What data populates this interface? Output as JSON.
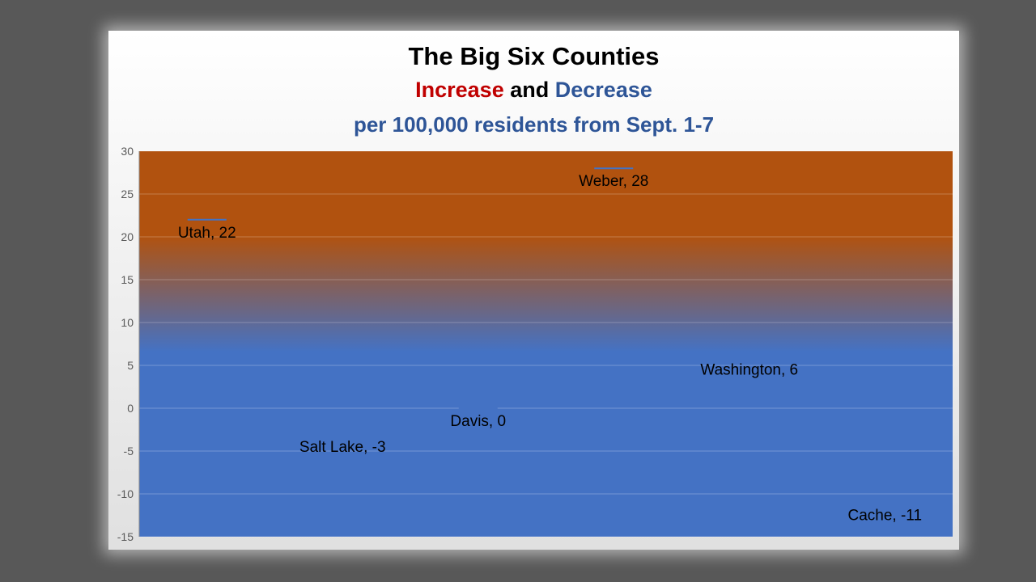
{
  "titles": {
    "line1": "The Big Six Counties",
    "line2_increase": "Increase",
    "line2_and": "and",
    "line2_decrease": "Decrease",
    "line3": "per 100,000 residents from Sept. 1-7"
  },
  "colors": {
    "increase": "#c00000",
    "decrease": "#2e5597",
    "dark": "#000000",
    "top_band": "#b1520f",
    "bottom_band": "#4472c4",
    "marker": "#4472c4"
  },
  "chart_data": {
    "type": "scatter",
    "title": "The Big Six Counties",
    "subtitle": "Increase and Decrease per 100,000 residents from Sept. 1-7",
    "xlabel": "",
    "ylabel": "",
    "ylim": [
      -15,
      30
    ],
    "yticks": [
      30,
      25,
      20,
      15,
      10,
      5,
      0,
      -5,
      -10,
      -15
    ],
    "grid": true,
    "legend": "none",
    "points": [
      {
        "label": "Utah, 22",
        "value": 22
      },
      {
        "label": "Salt Lake, -3",
        "value": -3
      },
      {
        "label": "Davis, 0",
        "value": 0
      },
      {
        "label": "Weber, 28",
        "value": 28
      },
      {
        "label": "Washington, 6",
        "value": 6
      },
      {
        "label": "Cache, -11",
        "value": -11
      }
    ]
  }
}
